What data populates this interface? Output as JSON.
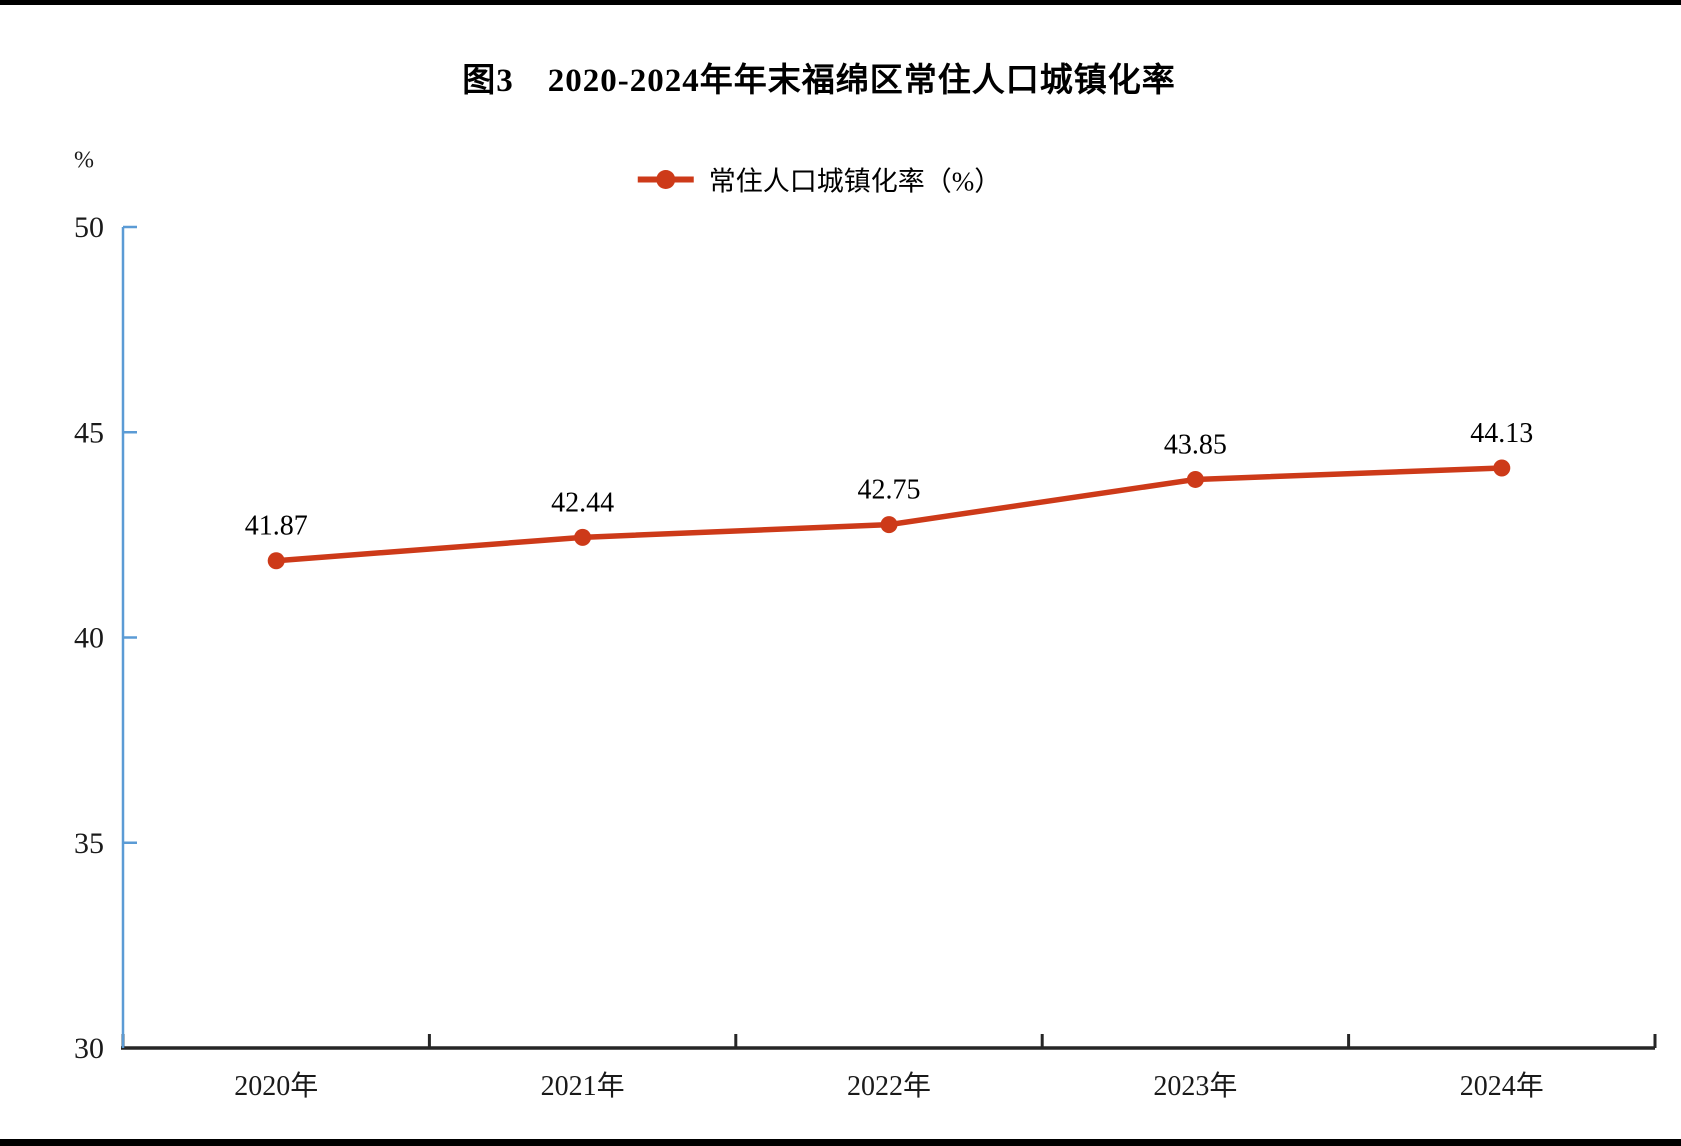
{
  "chart_data": {
    "type": "line",
    "title": "图3　2020-2024年年末福绵区常住人口城镇化率",
    "categories": [
      "2020年",
      "2021年",
      "2022年",
      "2023年",
      "2024年"
    ],
    "series": [
      {
        "name": "常住人口城镇化率（%）",
        "values": [
          41.87,
          42.44,
          42.75,
          43.85,
          44.13
        ],
        "color": "#cd3a19"
      }
    ],
    "data_labels": [
      "41.87",
      "42.44",
      "42.75",
      "43.85",
      "44.13"
    ],
    "xlabel": "",
    "ylabel": "%",
    "ylim": [
      30,
      50
    ],
    "y_ticks": [
      30,
      35,
      40,
      45,
      50
    ],
    "grid": false,
    "legend_position": "top-center",
    "axis_colors": {
      "y": "#5b9bd5",
      "x": "#262626"
    },
    "marker_style": "filled-circle"
  },
  "page": {
    "top_border": "black-bar",
    "bottom_border": "black-bar"
  }
}
